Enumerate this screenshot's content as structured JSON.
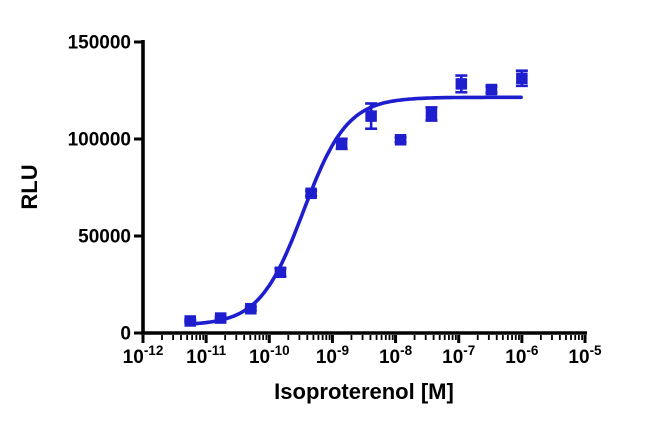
{
  "figure": {
    "background": "#ffffff"
  },
  "chart_data": {
    "type": "scatter",
    "subtype": "sigmoidal-dose-response-fit",
    "title": "",
    "xlabel": "Isoproterenol [M]",
    "ylabel": "RLU",
    "x_scale": "log10",
    "xlim": [
      1e-12,
      1e-05
    ],
    "ylim": [
      0,
      150000
    ],
    "x_tick_base": "10",
    "x_tick_exponents": [
      -12,
      -11,
      -10,
      -9,
      -8,
      -7,
      -6,
      -5
    ],
    "y_ticks": [
      0,
      50000,
      100000,
      150000
    ],
    "y_tick_labels": [
      "0",
      "50000",
      "100000",
      "150000"
    ],
    "grid": false,
    "legend": "none",
    "marker": "square",
    "marker_color": "#1e1ecf",
    "curve_color": "#1e1ecf",
    "axis_color": "#000000",
    "points": [
      {
        "x": 5.6e-12,
        "y": 6200,
        "err": 600
      },
      {
        "x": 1.7e-11,
        "y": 7700,
        "err": 600
      },
      {
        "x": 5.1e-11,
        "y": 12500,
        "err": 900
      },
      {
        "x": 1.5e-10,
        "y": 31300,
        "err": 2000
      },
      {
        "x": 4.6e-10,
        "y": 72000,
        "err": 1400
      },
      {
        "x": 1.4e-09,
        "y": 97500,
        "err": 2600
      },
      {
        "x": 4.1e-09,
        "y": 111800,
        "err": 6500
      },
      {
        "x": 1.2e-08,
        "y": 99600,
        "err": 1200
      },
      {
        "x": 3.7e-08,
        "y": 112900,
        "err": 3400
      },
      {
        "x": 1.1e-07,
        "y": 128400,
        "err": 4300
      },
      {
        "x": 3.3e-07,
        "y": 125500,
        "err": 1600
      },
      {
        "x": 1e-06,
        "y": 131300,
        "err": 3900
      }
    ],
    "fit": {
      "model": "sigmoidal dose-response",
      "bottom": 4000,
      "top": 121500,
      "log_ec50": -9.46,
      "hill": 1.25,
      "x_range": [
        5.6e-12,
        1e-06
      ]
    }
  }
}
